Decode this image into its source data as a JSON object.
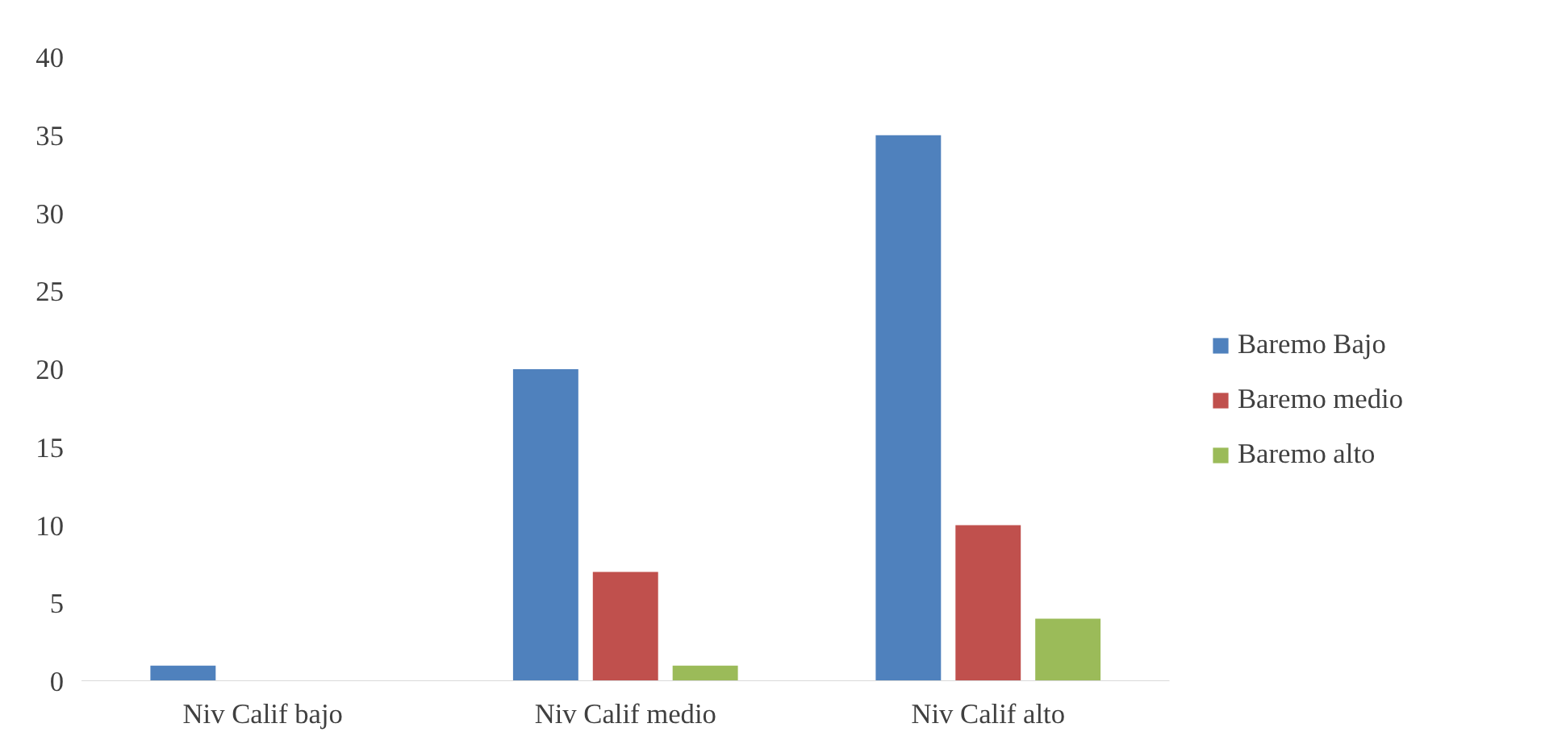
{
  "chart_data": {
    "type": "bar",
    "categories": [
      "Niv Calif bajo",
      "Niv Calif medio",
      "Niv Calif alto"
    ],
    "series": [
      {
        "name": "Baremo Bajo",
        "color": "#4f81bd",
        "values": [
          1,
          20,
          35
        ]
      },
      {
        "name": "Baremo medio",
        "color": "#c0504d",
        "values": [
          0,
          7,
          10
        ]
      },
      {
        "name": "Baremo alto",
        "color": "#9bbb59",
        "values": [
          0,
          1,
          4
        ]
      }
    ],
    "ylim": [
      0,
      40
    ],
    "yticks": [
      0,
      5,
      10,
      15,
      20,
      25,
      30,
      35,
      40
    ],
    "grid": false,
    "legend": "right"
  }
}
